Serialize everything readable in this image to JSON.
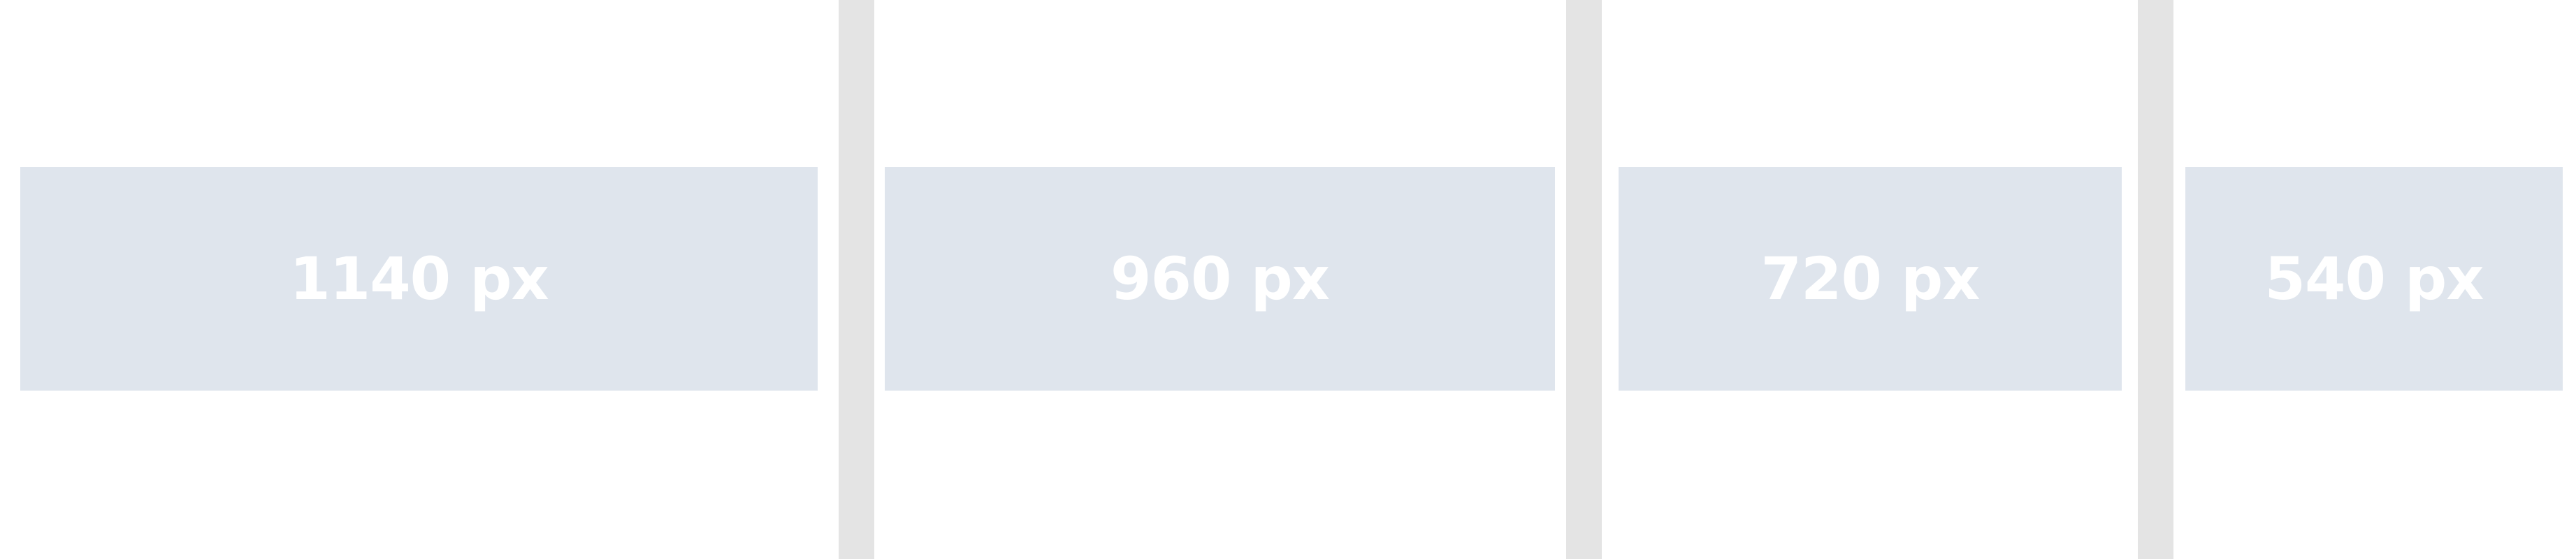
{
  "boxes": [
    {
      "label": "1140 px"
    },
    {
      "label": "960 px"
    },
    {
      "label": "720 px"
    },
    {
      "label": "540 px"
    }
  ],
  "colors": {
    "background": "#ffffff",
    "box_fill": "#dfe5ed",
    "box_text": "#ffffff",
    "divider": "#e4e4e4"
  }
}
